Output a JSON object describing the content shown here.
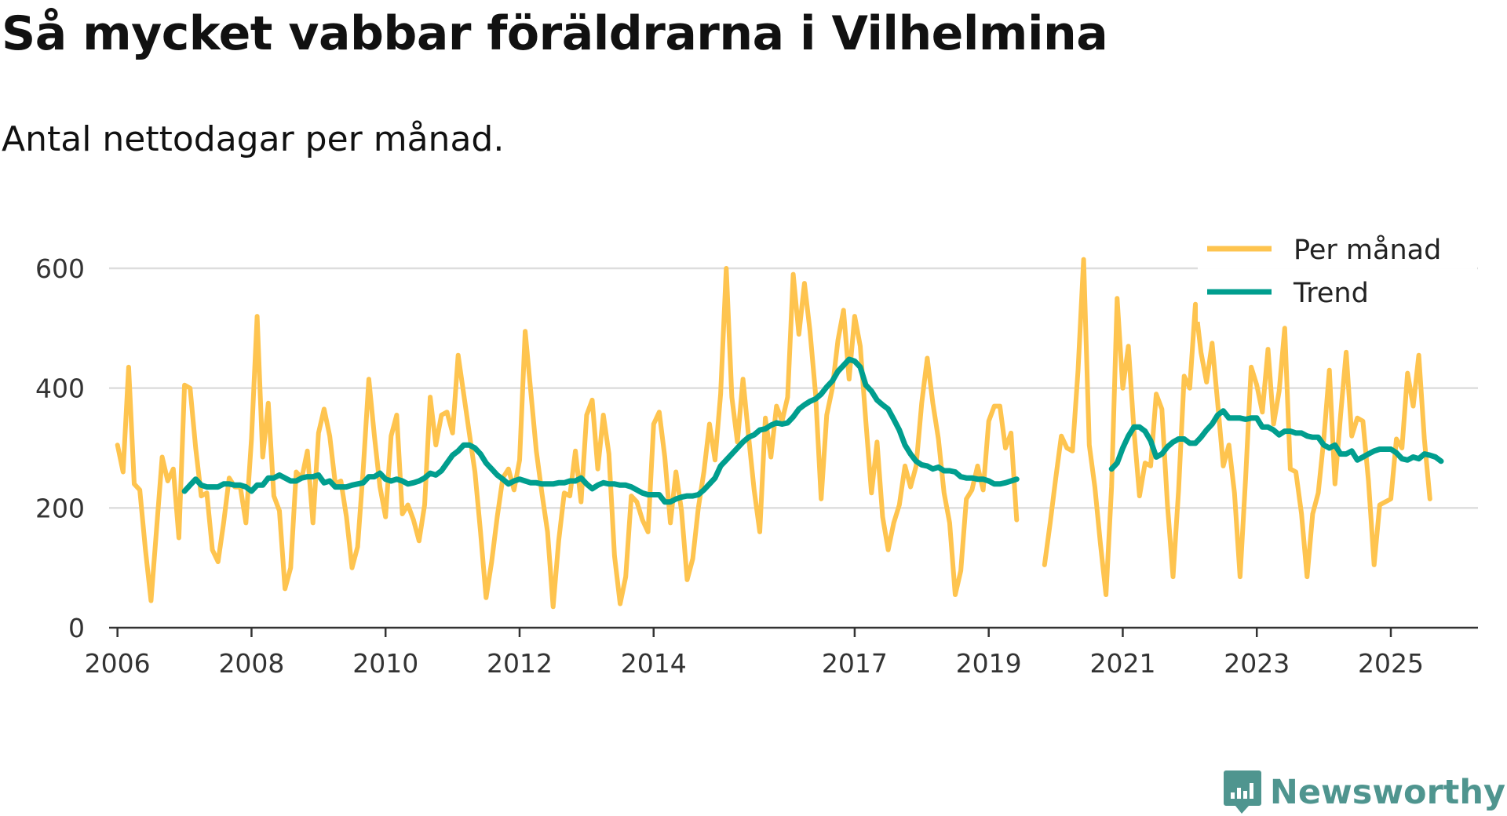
{
  "title": "Så mycket vabbar föräldrarna i Vilhelmina",
  "subtitle": "Antal nettodagar per månad.",
  "brand": {
    "name": "Newsworthy",
    "icon": "newsworthy-logo-icon"
  },
  "colors": {
    "per_month": "#fec44f",
    "trend": "#009e8e",
    "grid": "#dddddd",
    "axis": "#333333",
    "brand": "#4f958f"
  },
  "chart_data": {
    "type": "line",
    "title": "Så mycket vabbar föräldrarna i Vilhelmina",
    "subtitle": "Antal nettodagar per månad.",
    "xlabel": "",
    "ylabel": "",
    "ylim": [
      0,
      600
    ],
    "xlim": [
      2005.875,
      2026.3
    ],
    "y_ticks": [
      0,
      200,
      400,
      600
    ],
    "y_tick_labels": [
      "0",
      "200",
      "400",
      "600"
    ],
    "x_ticks": [
      2006,
      2008,
      2010,
      2012,
      2014,
      2017,
      2019,
      2021,
      2023,
      2025
    ],
    "x_tick_labels": [
      "2006",
      "2008",
      "2010",
      "2012",
      "2014",
      "2017",
      "2019",
      "2021",
      "2023",
      "2025"
    ],
    "grid": true,
    "legend_position": "top-right",
    "x_start": 2006,
    "x_step_months": 1,
    "series": [
      {
        "name": "Per månad",
        "values": [
          305,
          260,
          435,
          240,
          230,
          130,
          45,
          165,
          285,
          245,
          265,
          150,
          405,
          400,
          300,
          220,
          225,
          130,
          110,
          175,
          250,
          235,
          235,
          175,
          315,
          520,
          285,
          375,
          220,
          195,
          65,
          100,
          260,
          250,
          295,
          175,
          325,
          365,
          320,
          240,
          245,
          185,
          100,
          135,
          265,
          415,
          320,
          235,
          185,
          320,
          355,
          190,
          205,
          180,
          145,
          205,
          385,
          305,
          355,
          360,
          325,
          455,
          390,
          325,
          260,
          160,
          50,
          110,
          185,
          250,
          265,
          230,
          280,
          495,
          395,
          295,
          225,
          160,
          35,
          145,
          225,
          220,
          295,
          210,
          355,
          380,
          265,
          355,
          290,
          120,
          40,
          85,
          220,
          210,
          180,
          160,
          340,
          360,
          285,
          175,
          260,
          195,
          80,
          115,
          200,
          260,
          340,
          280,
          390,
          600,
          385,
          310,
          415,
          320,
          230,
          160,
          350,
          285,
          370,
          345,
          385,
          590,
          490,
          575,
          495,
          390,
          215,
          355,
          400,
          480,
          530,
          415,
          520,
          470,
          345,
          225,
          310,
          185,
          130,
          175,
          205,
          270,
          235,
          270,
          375,
          450,
          375,
          315,
          225,
          175,
          55,
          95,
          215,
          230,
          270,
          230,
          345,
          370,
          370,
          300,
          325,
          180,
          null,
          null,
          null,
          null,
          105,
          175,
          250,
          320,
          300,
          295,
          430,
          615,
          305,
          235,
          140,
          55,
          235,
          550,
          400,
          470,
          330,
          220,
          275,
          270,
          390,
          365,
          205,
          85,
          230,
          420,
          400,
          540,
          460,
          410,
          475,
          375,
          270,
          305,
          225,
          85,
          250,
          435,
          405,
          360,
          465,
          340,
          395,
          500,
          265,
          260,
          190,
          85,
          190,
          225,
          315,
          430,
          240,
          355,
          460,
          320,
          350,
          345,
          245,
          105,
          205,
          210,
          215,
          315,
          300,
          425,
          370,
          455,
          315,
          215
        ]
      },
      {
        "name": "Trend",
        "values": [
          null,
          null,
          null,
          null,
          null,
          null,
          null,
          null,
          null,
          null,
          null,
          null,
          228,
          238,
          248,
          238,
          235,
          235,
          235,
          240,
          240,
          238,
          238,
          235,
          228,
          238,
          238,
          250,
          250,
          255,
          250,
          245,
          245,
          250,
          252,
          252,
          255,
          242,
          245,
          235,
          235,
          235,
          238,
          240,
          242,
          252,
          252,
          258,
          248,
          245,
          248,
          245,
          240,
          242,
          245,
          250,
          258,
          255,
          262,
          275,
          288,
          295,
          305,
          305,
          300,
          290,
          275,
          265,
          255,
          248,
          240,
          245,
          248,
          245,
          242,
          242,
          240,
          240,
          240,
          242,
          242,
          245,
          245,
          250,
          240,
          232,
          238,
          242,
          240,
          240,
          238,
          238,
          235,
          230,
          225,
          222,
          222,
          222,
          210,
          210,
          215,
          218,
          220,
          220,
          222,
          230,
          240,
          250,
          270,
          280,
          290,
          300,
          310,
          318,
          322,
          330,
          332,
          338,
          342,
          340,
          342,
          352,
          365,
          372,
          378,
          382,
          390,
          402,
          412,
          428,
          438,
          448,
          445,
          435,
          405,
          395,
          380,
          372,
          365,
          348,
          330,
          305,
          290,
          278,
          272,
          270,
          265,
          268,
          262,
          262,
          260,
          252,
          250,
          250,
          248,
          248,
          245,
          240,
          240,
          242,
          245,
          248,
          null,
          null,
          null,
          null,
          null,
          null,
          null,
          null,
          null,
          null,
          null,
          null,
          null,
          null,
          null,
          null,
          265,
          275,
          300,
          320,
          335,
          335,
          328,
          312,
          285,
          290,
          302,
          310,
          315,
          315,
          308,
          308,
          318,
          330,
          340,
          355,
          362,
          350,
          350,
          350,
          348,
          350,
          350,
          335,
          335,
          330,
          322,
          328,
          328,
          325,
          325,
          320,
          318,
          318,
          305,
          300,
          305,
          290,
          290,
          295,
          280,
          285,
          290,
          295,
          298,
          298,
          298,
          292,
          282,
          280,
          285,
          282,
          290,
          288,
          285,
          278
        ]
      }
    ]
  }
}
